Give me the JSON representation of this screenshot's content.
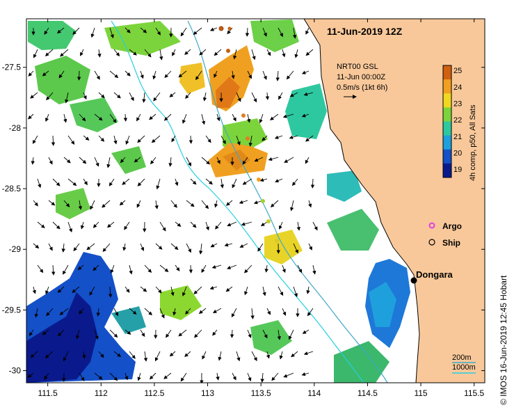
{
  "title": "11-Jun-2019 12Z",
  "current_info": {
    "line1": "NRT00 GSL",
    "line2": "11-Jun 00:00Z",
    "line3": "0.5m/s (1kt 6h)"
  },
  "colorbar": {
    "title": "4h comp, p50, All Sats",
    "ticks": [
      "19",
      "20",
      "21",
      "22",
      "23",
      "24",
      "25"
    ],
    "colors": [
      "#0a1a8c",
      "#1450c8",
      "#1ea0dc",
      "#2ec8a0",
      "#7cd43c",
      "#f0d820",
      "#f0a020",
      "#d06010"
    ]
  },
  "legend": {
    "argo": "Argo",
    "ship": "Ship"
  },
  "town": "Dongara",
  "depth_labels": {
    "shallow": "200m",
    "deep": "1000m"
  },
  "credit": "© IMOS 16-Jun-2019 12:45 Hobart",
  "chart_data": {
    "type": "map",
    "x_ticks": [
      "111.5",
      "112",
      "112.5",
      "113",
      "113.5",
      "114",
      "114.5",
      "115",
      "115.5"
    ],
    "y_ticks": [
      "-27.5",
      "-28",
      "-28.5",
      "-29",
      "-29.5",
      "-30"
    ],
    "x_range": [
      111.3,
      115.6
    ],
    "y_range": [
      -30.1,
      -27.1
    ],
    "colors": {
      "land": "#f8c89a",
      "coast": "#000000",
      "bathy_200": "#3ea8c8",
      "bathy_1000": "#22d0e0",
      "argo": "#e040e0"
    }
  }
}
